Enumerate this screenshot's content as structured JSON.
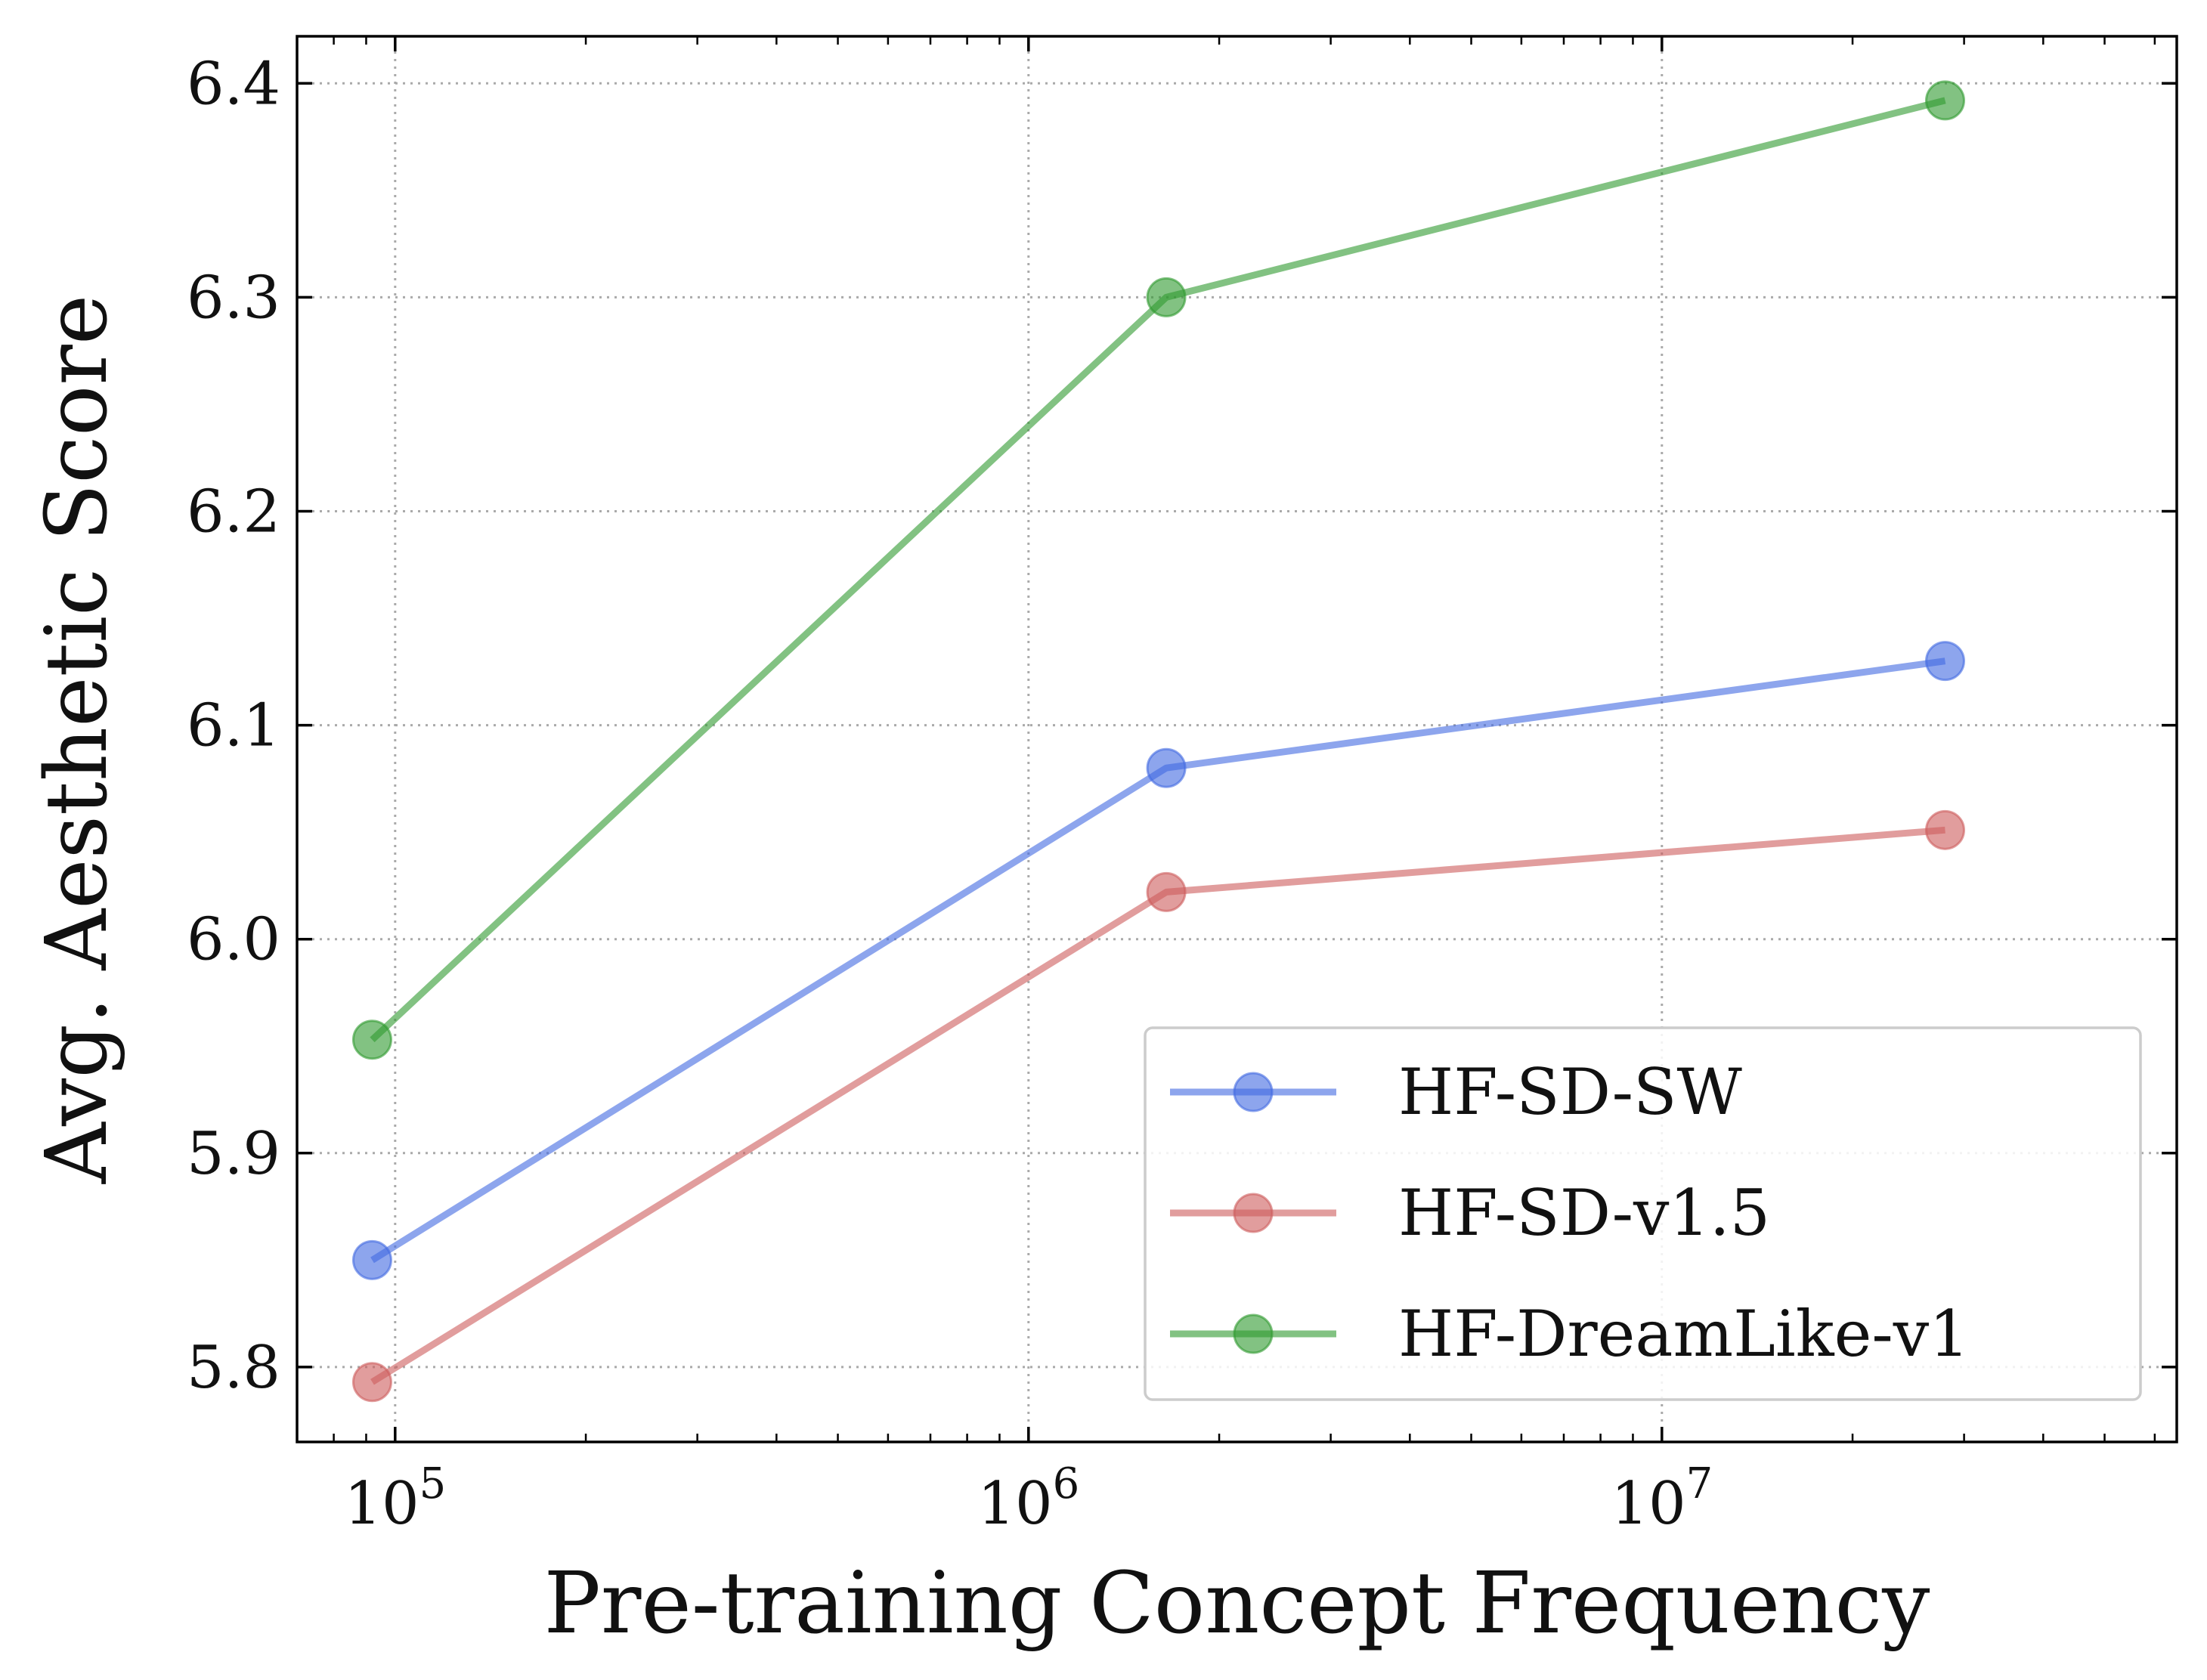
{
  "chart_data": {
    "type": "line",
    "xlabel": "Pre-training Concept Frequency",
    "ylabel": "Avg. Aesthetic Score",
    "xscale": "log",
    "xlim": [
      70000,
      65000000
    ],
    "ylim": [
      5.765,
      6.422
    ],
    "grid": true,
    "legend_position": "lower-right",
    "x_ticks": [
      {
        "value": 100000,
        "base": "10",
        "exp": "5"
      },
      {
        "value": 1000000,
        "base": "10",
        "exp": "6"
      },
      {
        "value": 10000000,
        "base": "10",
        "exp": "7"
      }
    ],
    "y_ticks": [
      {
        "value": 5.8,
        "label": "5.8"
      },
      {
        "value": 5.9,
        "label": "5.9"
      },
      {
        "value": 6.0,
        "label": "6.0"
      },
      {
        "value": 6.1,
        "label": "6.1"
      },
      {
        "value": 6.2,
        "label": "6.2"
      },
      {
        "value": 6.3,
        "label": "6.3"
      },
      {
        "value": 6.4,
        "label": "6.4"
      }
    ],
    "series": [
      {
        "name": "HF-SD-SW",
        "color": "#4169e1",
        "x": [
          92000,
          1650000,
          28000000
        ],
        "y": [
          5.85,
          6.08,
          6.13
        ]
      },
      {
        "name": "HF-SD-v1.5",
        "color": "#cd5c5c",
        "x": [
          92000,
          1650000,
          28000000
        ],
        "y": [
          5.793,
          6.022,
          6.051
        ]
      },
      {
        "name": "HF-DreamLike-v1",
        "color": "#2e9a2e",
        "x": [
          92000,
          1650000,
          28000000
        ],
        "y": [
          5.953,
          6.3,
          6.392
        ]
      }
    ]
  }
}
